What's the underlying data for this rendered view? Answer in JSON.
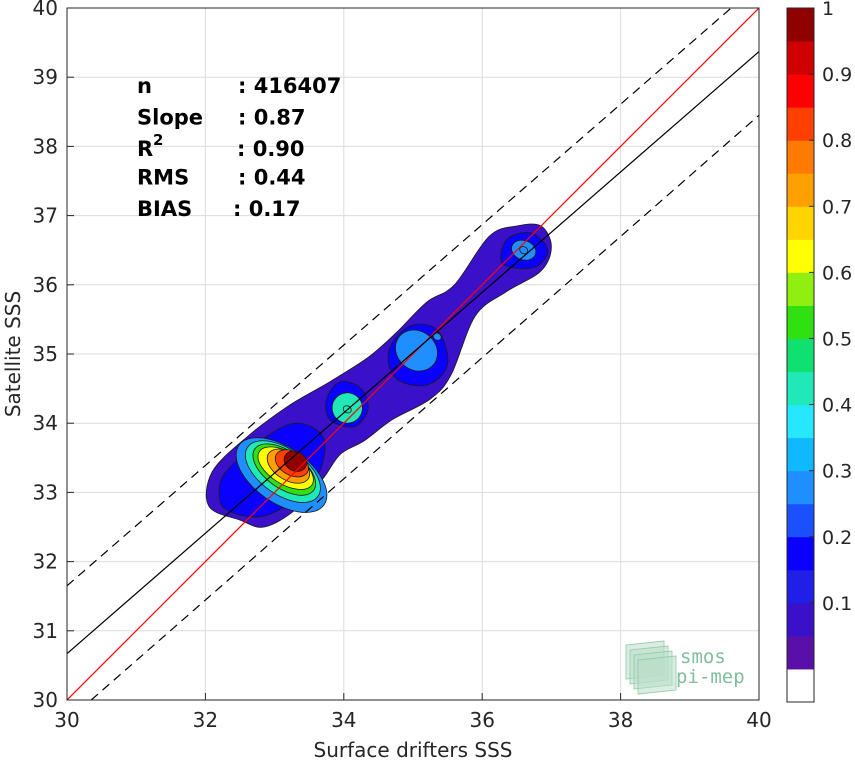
{
  "chart_data": {
    "type": "scatter",
    "subtype": "density-contour",
    "xlabel": "Surface drifters SSS",
    "ylabel": "Satellite SSS",
    "xlim": [
      30,
      40
    ],
    "ylim": [
      30,
      40
    ],
    "xticks": [
      "30",
      "32",
      "34",
      "36",
      "38",
      "40"
    ],
    "yticks": [
      "30",
      "31",
      "32",
      "33",
      "34",
      "35",
      "36",
      "37",
      "38",
      "39",
      "40"
    ],
    "grid": true,
    "stats": [
      {
        "label": "n",
        "value": ": 416407"
      },
      {
        "label": "Slope",
        "value": ": 0.87"
      },
      {
        "label": "R",
        "sup": "2",
        "value": ": 0.90"
      },
      {
        "label": "RMS",
        "value": ": 0.44"
      },
      {
        "label": "BIAS",
        "value": ": 0.17"
      }
    ],
    "lines": [
      {
        "role": "one-to-one",
        "color": "#ff0000",
        "style": "solid",
        "points": [
          [
            30,
            30
          ],
          [
            40,
            40
          ]
        ]
      },
      {
        "role": "fit",
        "color": "#000000",
        "style": "solid",
        "points": [
          [
            30,
            30.67
          ],
          [
            40,
            39.37
          ]
        ]
      },
      {
        "role": "upper-bound",
        "color": "#000000",
        "style": "dashed",
        "points": [
          [
            30,
            31.65
          ],
          [
            40,
            40.35
          ]
        ]
      },
      {
        "role": "lower-bound",
        "color": "#000000",
        "style": "dashed",
        "points": [
          [
            30.35,
            30
          ],
          [
            40,
            38.45
          ]
        ]
      }
    ],
    "density_peaks": [
      {
        "x": 33.3,
        "y": 33.45,
        "density": 1.0
      },
      {
        "x": 34.05,
        "y": 34.2,
        "density": 0.45
      },
      {
        "x": 35.35,
        "y": 35.25,
        "density": 0.3
      },
      {
        "x": 36.6,
        "y": 36.5,
        "density": 0.3
      }
    ],
    "colorbar": {
      "range": [
        0,
        1
      ],
      "ticks": [
        "0.1",
        "0.2",
        "0.3",
        "0.4",
        "0.5",
        "0.6",
        "0.7",
        "0.8",
        "0.9",
        "1"
      ],
      "colors": [
        "#ffffff",
        "#5a10a8",
        "#3a10c8",
        "#1f1fe8",
        "#0a00ff",
        "#1a50ff",
        "#1f8fff",
        "#10b8ff",
        "#25e8ff",
        "#20e8b8",
        "#10e070",
        "#30e010",
        "#90ef10",
        "#ffff00",
        "#ffd400",
        "#ffa000",
        "#ff7a00",
        "#ff4000",
        "#ff0000",
        "#d00000",
        "#900000"
      ]
    },
    "watermark": {
      "line1": "smos",
      "line2": "pi-mep"
    }
  }
}
